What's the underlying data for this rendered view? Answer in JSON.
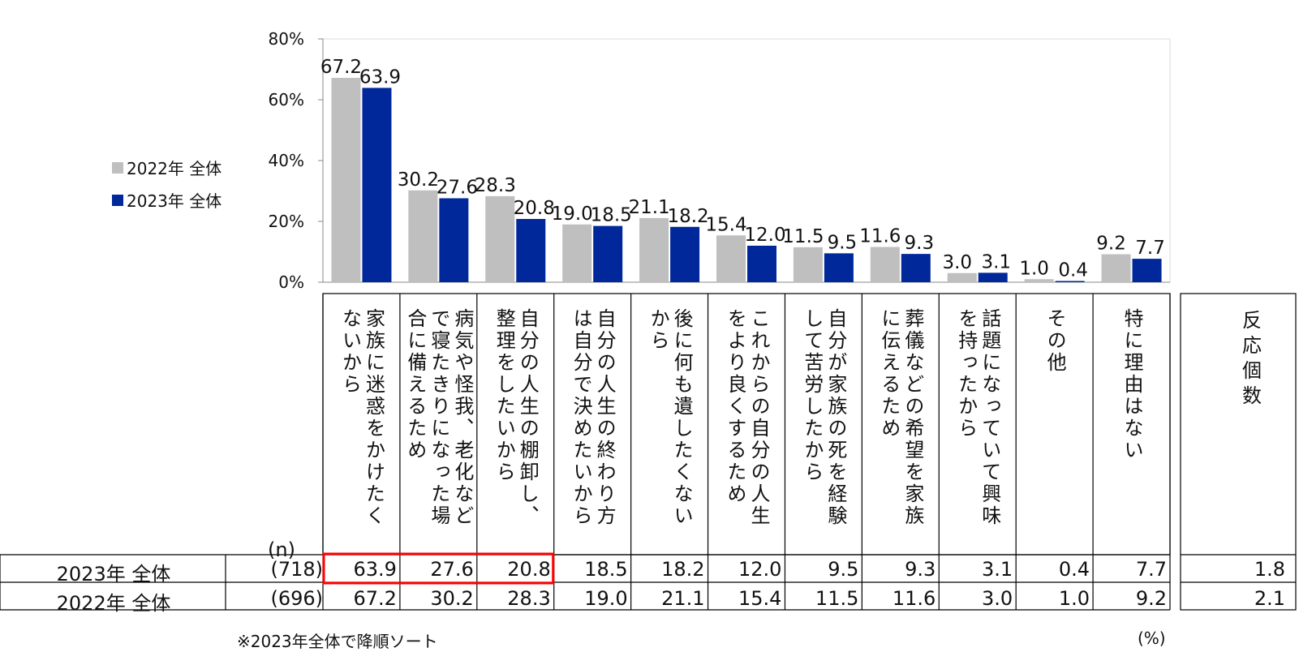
{
  "chart_data": {
    "type": "bar",
    "ylim": [
      0,
      80
    ],
    "yticks": [
      "0%",
      "20%",
      "40%",
      "60%",
      "80%"
    ],
    "categories": [
      [
        "家族に迷惑をかけたく",
        "ないから"
      ],
      [
        "病気や怪我、老化など",
        "で寝たきりになった場",
        "合に備えるため"
      ],
      [
        "自分の人生の棚卸し、",
        "整理をしたいから"
      ],
      [
        "自分の人生の終わり方",
        "は自分で決めたいから"
      ],
      [
        "後に何も遺したくない",
        "から"
      ],
      [
        "これからの自分の人生",
        "をより良くするため"
      ],
      [
        "自分が家族の死を経験",
        "して苦労したから"
      ],
      [
        "葬儀などの希望を家族",
        "に伝えるため"
      ],
      [
        "話題になっていて興味",
        "を持ったから"
      ],
      [
        "その他"
      ],
      [
        "特に理由はない"
      ]
    ],
    "series": [
      {
        "name": "2022年 全体",
        "color": "#bfbfbf",
        "values": [
          67.2,
          30.2,
          28.3,
          19.0,
          21.1,
          15.4,
          11.5,
          11.6,
          3.0,
          1.0,
          9.2
        ],
        "labels": [
          "67.2",
          "30.2",
          "28.3",
          "19.0",
          "21.1",
          "15.4",
          "11.5",
          "11.6",
          "3.0",
          "1.0",
          "9.2"
        ]
      },
      {
        "name": "2023年 全体",
        "color": "#00289a",
        "values": [
          63.9,
          27.6,
          20.8,
          18.5,
          18.2,
          12.0,
          9.5,
          9.3,
          3.1,
          0.4,
          7.7
        ],
        "labels": [
          "63.9",
          "27.6",
          "20.8",
          "18.5",
          "18.2",
          "12.0",
          "9.5",
          "9.3",
          "3.1",
          "0.4",
          "7.7"
        ]
      }
    ],
    "highlight_color": "#ff0000",
    "highlighted_cells": {
      "row": "2023年 全体",
      "columns": [
        0,
        1,
        2
      ]
    }
  },
  "table": {
    "n_header": "(n)",
    "response_header": [
      "反",
      "応",
      "個",
      "数"
    ],
    "rows": [
      {
        "label": "2023年  全体",
        "n": "(718)",
        "values": [
          "63.9",
          "27.6",
          "20.8",
          "18.5",
          "18.2",
          "12.0",
          "9.5",
          "9.3",
          "3.1",
          "0.4",
          "7.7"
        ],
        "response_count": "1.8"
      },
      {
        "label": "2022年  全体",
        "n": "(696)",
        "values": [
          "67.2",
          "30.2",
          "28.3",
          "19.0",
          "21.1",
          "15.4",
          "11.5",
          "11.6",
          "3.0",
          "1.0",
          "9.2"
        ],
        "response_count": "2.1"
      }
    ]
  },
  "legend": [
    {
      "label": "2022年  全体",
      "color": "#bfbfbf"
    },
    {
      "label": "2023年  全体",
      "color": "#00289a"
    }
  ],
  "footnote": "※2023年全体で降順ソート",
  "unit_note": "(%)"
}
